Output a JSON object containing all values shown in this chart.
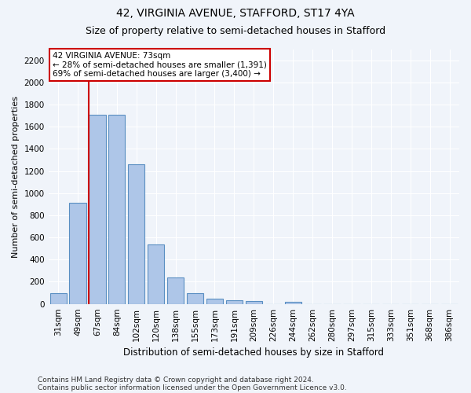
{
  "title": "42, VIRGINIA AVENUE, STAFFORD, ST17 4YA",
  "subtitle": "Size of property relative to semi-detached houses in Stafford",
  "xlabel": "Distribution of semi-detached houses by size in Stafford",
  "ylabel": "Number of semi-detached properties",
  "footer1": "Contains HM Land Registry data © Crown copyright and database right 2024.",
  "footer2": "Contains public sector information licensed under the Open Government Licence v3.0.",
  "categories": [
    "31sqm",
    "49sqm",
    "67sqm",
    "84sqm",
    "102sqm",
    "120sqm",
    "138sqm",
    "155sqm",
    "173sqm",
    "191sqm",
    "209sqm",
    "226sqm",
    "244sqm",
    "262sqm",
    "280sqm",
    "297sqm",
    "315sqm",
    "333sqm",
    "351sqm",
    "368sqm",
    "386sqm"
  ],
  "values": [
    95,
    910,
    1710,
    1710,
    1260,
    535,
    240,
    100,
    50,
    35,
    27,
    0,
    20,
    0,
    0,
    0,
    0,
    0,
    0,
    0,
    0
  ],
  "bar_color": "#aec6e8",
  "bar_edge_color": "#5a8fc2",
  "property_line_x": 2,
  "annotation_line1": "42 VIRGINIA AVENUE: 73sqm",
  "annotation_line2": "← 28% of semi-detached houses are smaller (1,391)",
  "annotation_line3": "69% of semi-detached houses are larger (3,400) →",
  "annotation_box_color": "#ffffff",
  "annotation_box_edge": "#cc0000",
  "red_line_color": "#cc0000",
  "ylim": [
    0,
    2300
  ],
  "yticks": [
    0,
    200,
    400,
    600,
    800,
    1000,
    1200,
    1400,
    1600,
    1800,
    2000,
    2200
  ],
  "bg_color": "#f0f4fa",
  "plot_bg_color": "#f0f4fa",
  "title_fontsize": 10,
  "subtitle_fontsize": 9,
  "ylabel_fontsize": 8,
  "xlabel_fontsize": 8.5,
  "tick_fontsize": 7.5,
  "annotation_fontsize": 7.5,
  "footer_fontsize": 6.5
}
